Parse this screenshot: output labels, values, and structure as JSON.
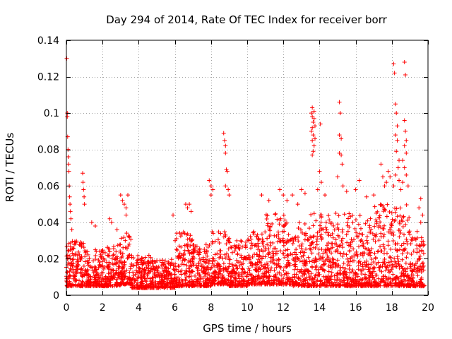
{
  "chart_data": {
    "type": "scatter",
    "title": "Day 294 of 2014, Rate Of TEC Index for receiver borr",
    "xlabel": "GPS time / hours",
    "ylabel": "ROTI / TECUs",
    "xlim": [
      0,
      20
    ],
    "ylim": [
      0,
      0.14
    ],
    "xticks": [
      0,
      2,
      4,
      6,
      8,
      10,
      12,
      14,
      16,
      18,
      20
    ],
    "xtick_labels": [
      "0",
      "2",
      "4",
      "6",
      "8",
      "10",
      "12",
      "14",
      "16",
      "18",
      "20"
    ],
    "yticks": [
      0,
      0.02,
      0.04,
      0.06,
      0.08,
      0.1,
      0.12,
      0.14
    ],
    "ytick_labels": [
      "0",
      "0.02",
      "0.04",
      "0.06",
      "0.08",
      "0.1",
      "0.12",
      "0.14"
    ],
    "grid": true,
    "marker": "+",
    "marker_color": "#ff0000",
    "series": [
      {
        "name": "ROTI",
        "points": [
          [
            0.02,
            0.13
          ],
          [
            0.05,
            0.1
          ],
          [
            0.05,
            0.098
          ],
          [
            0.07,
            0.087
          ],
          [
            0.09,
            0.08
          ],
          [
            0.1,
            0.076
          ],
          [
            0.12,
            0.072
          ],
          [
            0.14,
            0.068
          ],
          [
            0.16,
            0.06
          ],
          [
            0.18,
            0.054
          ],
          [
            0.2,
            0.05
          ],
          [
            0.22,
            0.046
          ],
          [
            0.25,
            0.042
          ],
          [
            0.3,
            0.036
          ],
          [
            0.9,
            0.067
          ],
          [
            0.92,
            0.062
          ],
          [
            0.95,
            0.058
          ],
          [
            0.98,
            0.054
          ],
          [
            1.0,
            0.05
          ],
          [
            3.0,
            0.055
          ],
          [
            3.1,
            0.052
          ],
          [
            3.2,
            0.05
          ],
          [
            3.3,
            0.048
          ],
          [
            3.4,
            0.055
          ],
          [
            3.3,
            0.044
          ],
          [
            2.4,
            0.042
          ],
          [
            2.5,
            0.04
          ],
          [
            1.4,
            0.04
          ],
          [
            1.6,
            0.038
          ],
          [
            2.8,
            0.036
          ],
          [
            6.6,
            0.05
          ],
          [
            6.7,
            0.048
          ],
          [
            6.8,
            0.05
          ],
          [
            6.9,
            0.046
          ],
          [
            5.9,
            0.044
          ],
          [
            7.9,
            0.063
          ],
          [
            8.0,
            0.06
          ],
          [
            8.0,
            0.055
          ],
          [
            8.1,
            0.058
          ],
          [
            8.7,
            0.089
          ],
          [
            8.75,
            0.085
          ],
          [
            8.8,
            0.082
          ],
          [
            8.8,
            0.078
          ],
          [
            8.85,
            0.069
          ],
          [
            8.9,
            0.068
          ],
          [
            8.8,
            0.06
          ],
          [
            8.95,
            0.058
          ],
          [
            9.0,
            0.055
          ],
          [
            10.8,
            0.055
          ],
          [
            11.2,
            0.052
          ],
          [
            11.8,
            0.058
          ],
          [
            12.0,
            0.055
          ],
          [
            12.2,
            0.052
          ],
          [
            12.5,
            0.055
          ],
          [
            13.0,
            0.058
          ],
          [
            13.2,
            0.056
          ],
          [
            12.8,
            0.05
          ],
          [
            13.55,
            0.1
          ],
          [
            13.6,
            0.103
          ],
          [
            13.6,
            0.098
          ],
          [
            13.65,
            0.095
          ],
          [
            13.6,
            0.092
          ],
          [
            13.65,
            0.088
          ],
          [
            13.6,
            0.085
          ],
          [
            13.7,
            0.082
          ],
          [
            13.65,
            0.079
          ],
          [
            13.6,
            0.077
          ],
          [
            13.7,
            0.101
          ],
          [
            13.7,
            0.097
          ],
          [
            13.75,
            0.093
          ],
          [
            13.55,
            0.09
          ],
          [
            13.75,
            0.086
          ],
          [
            14.05,
            0.094
          ],
          [
            14.0,
            0.068
          ],
          [
            14.1,
            0.062
          ],
          [
            13.9,
            0.058
          ],
          [
            14.3,
            0.055
          ],
          [
            15.1,
            0.106
          ],
          [
            15.15,
            0.1
          ],
          [
            15.1,
            0.088
          ],
          [
            15.2,
            0.086
          ],
          [
            15.1,
            0.078
          ],
          [
            15.2,
            0.077
          ],
          [
            15.25,
            0.072
          ],
          [
            15.0,
            0.065
          ],
          [
            15.3,
            0.06
          ],
          [
            15.5,
            0.057
          ],
          [
            16.2,
            0.063
          ],
          [
            16.0,
            0.058
          ],
          [
            16.6,
            0.054
          ],
          [
            17.0,
            0.055
          ],
          [
            17.4,
            0.072
          ],
          [
            17.5,
            0.065
          ],
          [
            17.6,
            0.06
          ],
          [
            17.8,
            0.068
          ],
          [
            17.9,
            0.065
          ],
          [
            17.7,
            0.062
          ],
          [
            18.1,
            0.127
          ],
          [
            18.15,
            0.122
          ],
          [
            18.2,
            0.105
          ],
          [
            18.25,
            0.1
          ],
          [
            18.3,
            0.093
          ],
          [
            18.2,
            0.088
          ],
          [
            18.3,
            0.085
          ],
          [
            18.25,
            0.079
          ],
          [
            18.4,
            0.074
          ],
          [
            18.35,
            0.07
          ],
          [
            18.2,
            0.066
          ],
          [
            18.4,
            0.063
          ],
          [
            18.1,
            0.06
          ],
          [
            18.5,
            0.058
          ],
          [
            18.7,
            0.128
          ],
          [
            18.75,
            0.121
          ],
          [
            18.7,
            0.096
          ],
          [
            18.75,
            0.09
          ],
          [
            18.8,
            0.085
          ],
          [
            18.7,
            0.082
          ],
          [
            18.8,
            0.078
          ],
          [
            18.6,
            0.074
          ],
          [
            18.7,
            0.07
          ],
          [
            18.8,
            0.066
          ],
          [
            18.6,
            0.062
          ],
          [
            18.9,
            0.06
          ],
          [
            19.5,
            0.048
          ],
          [
            19.6,
            0.053
          ],
          [
            19.7,
            0.044
          ],
          [
            19.6,
            0.04
          ],
          [
            19.4,
            0.035
          ]
        ],
        "background": [
          {
            "x": [
              0.0,
              1.0
            ],
            "band": [
              0.005,
              0.03
            ]
          },
          {
            "x": [
              1.0,
              2.0
            ],
            "band": [
              0.005,
              0.025
            ]
          },
          {
            "x": [
              2.0,
              3.0
            ],
            "band": [
              0.005,
              0.028
            ]
          },
          {
            "x": [
              3.0,
              3.6
            ],
            "band": [
              0.006,
              0.035
            ]
          },
          {
            "x": [
              3.6,
              5.0
            ],
            "band": [
              0.004,
              0.022
            ]
          },
          {
            "x": [
              5.0,
              6.0
            ],
            "band": [
              0.004,
              0.02
            ]
          },
          {
            "x": [
              6.0,
              7.0
            ],
            "band": [
              0.005,
              0.035
            ]
          },
          {
            "x": [
              7.0,
              8.0
            ],
            "band": [
              0.005,
              0.028
            ]
          },
          {
            "x": [
              8.0,
              9.0
            ],
            "band": [
              0.006,
              0.035
            ]
          },
          {
            "x": [
              9.0,
              10.0
            ],
            "band": [
              0.005,
              0.03
            ]
          },
          {
            "x": [
              10.0,
              11.0
            ],
            "band": [
              0.006,
              0.035
            ]
          },
          {
            "x": [
              11.0,
              12.5
            ],
            "band": [
              0.006,
              0.045
            ]
          },
          {
            "x": [
              12.5,
              13.5
            ],
            "band": [
              0.005,
              0.04
            ]
          },
          {
            "x": [
              13.5,
              15.0
            ],
            "band": [
              0.005,
              0.045
            ]
          },
          {
            "x": [
              15.0,
              16.0
            ],
            "band": [
              0.005,
              0.045
            ]
          },
          {
            "x": [
              16.0,
              17.0
            ],
            "band": [
              0.005,
              0.045
            ]
          },
          {
            "x": [
              17.0,
              18.0
            ],
            "band": [
              0.005,
              0.05
            ]
          },
          {
            "x": [
              18.0,
              19.0
            ],
            "band": [
              0.005,
              0.05
            ]
          },
          {
            "x": [
              19.0,
              19.8
            ],
            "band": [
              0.005,
              0.032
            ]
          }
        ]
      }
    ]
  }
}
